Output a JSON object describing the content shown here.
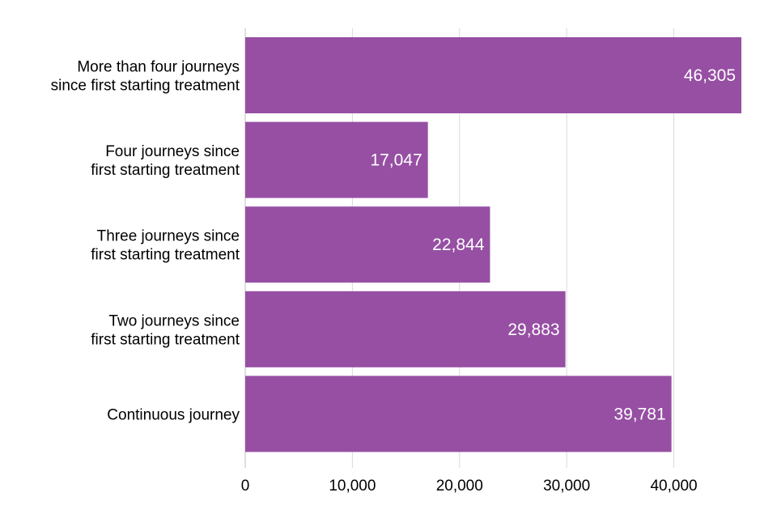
{
  "chart_data": {
    "type": "bar",
    "orientation": "horizontal",
    "categories": [
      [
        "More than four journeys",
        "since first starting treatment"
      ],
      [
        "Four journeys since",
        "first starting treatment"
      ],
      [
        "Three journeys since",
        "first starting treatment"
      ],
      [
        "Two journeys since",
        "first starting treatment"
      ],
      [
        "Continuous journey"
      ]
    ],
    "values": [
      46305,
      17047,
      22844,
      29883,
      39781
    ],
    "data_labels": [
      "46,305",
      "17,047",
      "22,844",
      "29,883",
      "39,781"
    ],
    "x_ticks": [
      0,
      10000,
      20000,
      30000,
      40000
    ],
    "x_tick_labels": [
      "0",
      "10,000",
      "20,000",
      "30,000",
      "40,000"
    ],
    "xlim": [
      0,
      46305
    ],
    "grid": "vertical",
    "legend": "none",
    "bar_color": "#964FA3",
    "grid_color": "#D9D9D9",
    "label_color": "#FFFFFF"
  }
}
